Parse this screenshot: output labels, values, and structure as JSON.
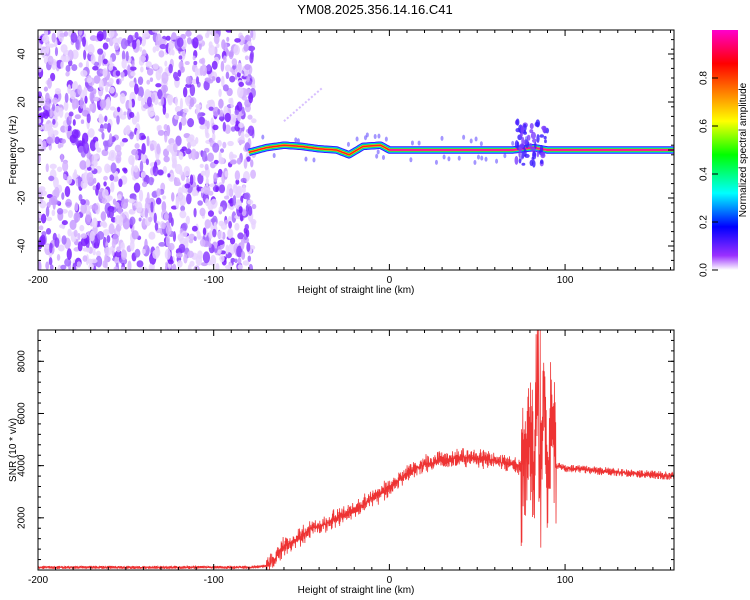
{
  "title": "YM08.2025.356.14.16.C41",
  "chart_data": [
    {
      "type": "heatmap",
      "name": "spectrogram",
      "xlabel": "Height of straight line (km)",
      "ylabel": "Frequency (Hz)",
      "xlim": [
        -200,
        162
      ],
      "ylim": [
        -50,
        50
      ],
      "x_ticks": [
        -200,
        -100,
        0,
        100
      ],
      "x_tick_labels": [
        "-200",
        "-100",
        "0",
        "100"
      ],
      "y_ticks": [
        -40,
        -20,
        0,
        20,
        40
      ],
      "y_tick_labels": [
        "-40",
        "-20",
        "0",
        "20",
        "40"
      ],
      "noise_region_x": [
        -200,
        -77
      ],
      "signal_track": {
        "x_start": -80,
        "x_end": 162,
        "center_hz": [
          [
            -80,
            -1
          ],
          [
            -70,
            1
          ],
          [
            -60,
            2
          ],
          [
            -50,
            1.5
          ],
          [
            -40,
            0.5
          ],
          [
            -30,
            0
          ],
          [
            -23,
            -2
          ],
          [
            -15,
            1.5
          ],
          [
            -5,
            2
          ],
          [
            0,
            0
          ],
          [
            40,
            0
          ],
          [
            70,
            0
          ],
          [
            82,
            1
          ],
          [
            90,
            0
          ],
          [
            162,
            0
          ]
        ],
        "bandwidth_hz": 3
      },
      "colorbar": {
        "label": "Normalized spectral amplitude",
        "range": [
          0,
          1
        ],
        "ticks": [
          0.0,
          0.2,
          0.4,
          0.6,
          0.8
        ],
        "tick_labels": [
          "0.0",
          "0.2",
          "0.4",
          "0.6",
          "0.8"
        ],
        "colormap": [
          "#ffffff",
          "#7f00ff",
          "#0000ff",
          "#00ffff",
          "#00ff00",
          "#ffff00",
          "#ff8000",
          "#ff0000",
          "#ff00ff"
        ]
      }
    },
    {
      "type": "line",
      "name": "snr",
      "xlabel": "Height of straight line (km)",
      "ylabel": "SNR (10 * v/v)",
      "xlim": [
        -200,
        162
      ],
      "ylim": [
        0,
        9200
      ],
      "x_ticks": [
        -200,
        -100,
        0,
        100
      ],
      "x_tick_labels": [
        "-200",
        "-100",
        "0",
        "100"
      ],
      "y_ticks": [
        2000,
        4000,
        6000,
        8000
      ],
      "y_tick_labels": [
        "2000",
        "4000",
        "6000",
        "8000"
      ],
      "color": "#ee3333",
      "x": [
        -200,
        -180,
        -160,
        -140,
        -120,
        -100,
        -80,
        -70,
        -65,
        -60,
        -55,
        -50,
        -45,
        -40,
        -35,
        -30,
        -25,
        -20,
        -15,
        -10,
        -5,
        0,
        5,
        10,
        15,
        20,
        25,
        30,
        35,
        40,
        45,
        50,
        55,
        60,
        65,
        70,
        75,
        78,
        80,
        82,
        84,
        86,
        88,
        90,
        92,
        95,
        100,
        110,
        120,
        130,
        140,
        150,
        162
      ],
      "y": [
        100,
        100,
        100,
        100,
        100,
        100,
        100,
        150,
        450,
        900,
        1100,
        1300,
        1600,
        1650,
        1800,
        2000,
        2150,
        2300,
        2500,
        2750,
        2950,
        3100,
        3400,
        3700,
        3900,
        4050,
        4100,
        4200,
        4250,
        4300,
        4350,
        4300,
        4250,
        4200,
        4100,
        4050,
        4000,
        4500,
        5200,
        3500,
        6800,
        3000,
        7500,
        2800,
        6000,
        4000,
        3900,
        3850,
        3800,
        3750,
        3700,
        3650,
        3600
      ]
    }
  ]
}
